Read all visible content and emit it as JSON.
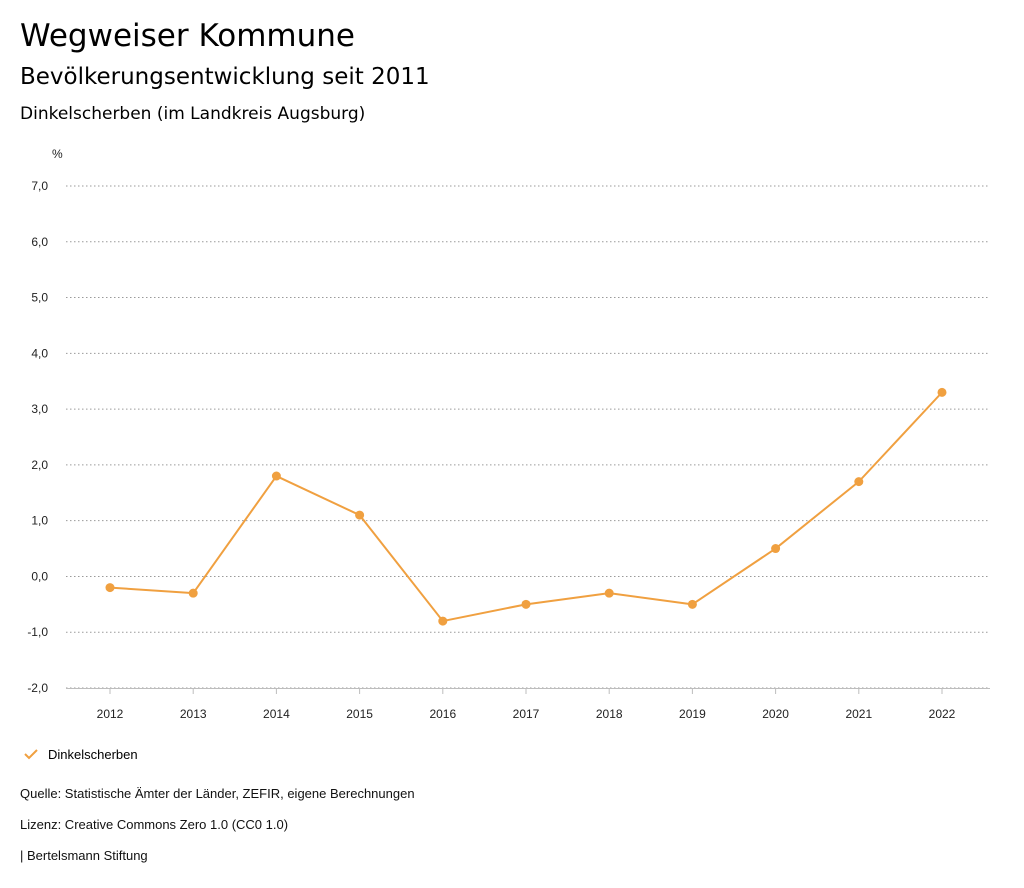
{
  "header": {
    "title": "Wegweiser Kommune",
    "subtitle": "Bevölkerungsentwicklung seit 2011",
    "place": "Dinkelscherben (im Landkreis Augsburg)"
  },
  "chart_data": {
    "type": "line",
    "y_unit": "%",
    "categories": [
      "2012",
      "2013",
      "2014",
      "2015",
      "2016",
      "2017",
      "2018",
      "2019",
      "2020",
      "2021",
      "2022"
    ],
    "series": [
      {
        "name": "Dinkelscherben",
        "color": "#f0a040",
        "values": [
          -0.2,
          -0.3,
          1.8,
          1.1,
          -0.8,
          -0.5,
          -0.3,
          -0.5,
          0.5,
          1.7,
          3.3
        ]
      }
    ],
    "ylim": [
      -2.0,
      7.0
    ],
    "yticks": [
      7.0,
      6.0,
      5.0,
      4.0,
      3.0,
      2.0,
      1.0,
      0.0,
      -1.0,
      -2.0
    ],
    "ytick_labels": [
      "7,0",
      "6,0",
      "5,0",
      "4,0",
      "3,0",
      "2,0",
      "1,0",
      "0,0",
      "-1,0",
      "-2,0"
    ],
    "grid": true,
    "legend": "bottom-left"
  },
  "legend": {
    "label": "Dinkelscherben"
  },
  "footer": {
    "source": "Quelle: Statistische Ämter der Länder, ZEFIR, eigene Berechnungen",
    "license": "Lizenz: Creative Commons Zero 1.0 (CC0 1.0)",
    "publisher": "| Bertelsmann Stiftung"
  }
}
